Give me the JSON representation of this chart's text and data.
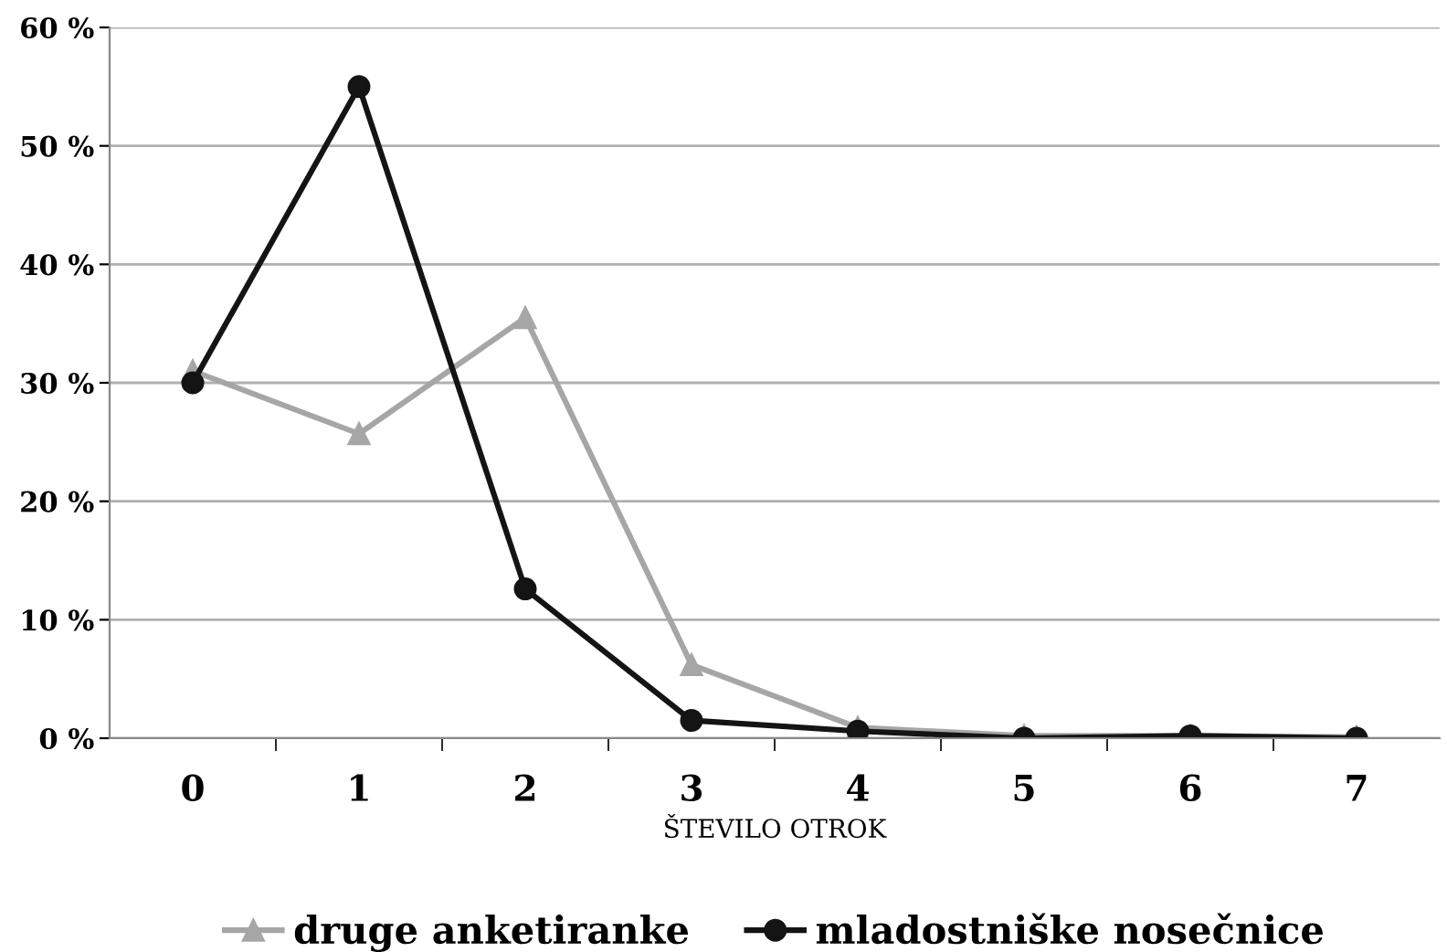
{
  "chart_data": {
    "type": "line",
    "xlabel": "ŠTEVILO OTROK",
    "categories": [
      "0",
      "1",
      "2",
      "3",
      "4",
      "5",
      "6",
      "7"
    ],
    "series": [
      {
        "name": "druge anketiranke",
        "color": "#a6a6a6",
        "marker": "triangle",
        "values": [
          31,
          25.7,
          35.5,
          6.2,
          0.9,
          0.2,
          0.2,
          0.1
        ]
      },
      {
        "name": "mladostniške nosečnice",
        "color": "#141414",
        "marker": "circle",
        "values": [
          30,
          55,
          12.6,
          1.5,
          0.6,
          0,
          0.2,
          0
        ]
      }
    ],
    "ylim": [
      0,
      60
    ],
    "yticks": [
      {
        "value": 0,
        "label": "0 %"
      },
      {
        "value": 10,
        "label": "10 %"
      },
      {
        "value": 20,
        "label": "20 %"
      },
      {
        "value": 30,
        "label": "30 %"
      },
      {
        "value": 40,
        "label": "40 %"
      },
      {
        "value": 50,
        "label": "50 %"
      },
      {
        "value": 60,
        "label": "60 %"
      }
    ],
    "grid": "y",
    "legend": "bottom",
    "line_style": "solid"
  }
}
